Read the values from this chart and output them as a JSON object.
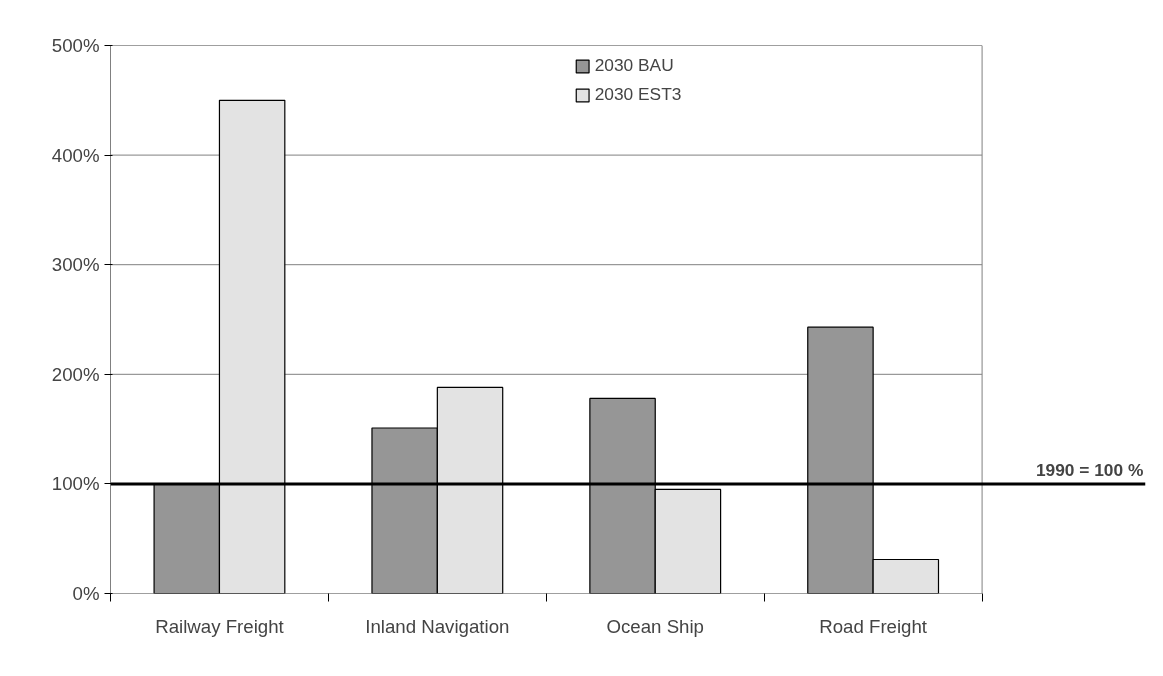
{
  "chart_data": {
    "type": "bar",
    "categories": [
      "Railway Freight",
      "Inland Navigation",
      "Ocean Ship",
      "Road Freight"
    ],
    "series": [
      {
        "name": "2030 BAU",
        "color": "#969696",
        "values": [
          100,
          151,
          178,
          243
        ]
      },
      {
        "name": "2030 EST3",
        "color": "#e3e3e3",
        "values": [
          450,
          188,
          95,
          31
        ]
      }
    ],
    "ylim": [
      0,
      500
    ],
    "yticks": [
      {
        "value": 0,
        "label": "0%"
      },
      {
        "value": 100,
        "label": "100%"
      },
      {
        "value": 200,
        "label": "200%"
      },
      {
        "value": 300,
        "label": "300%"
      },
      {
        "value": 400,
        "label": "400%"
      },
      {
        "value": 500,
        "label": "500%"
      }
    ],
    "ref_lines": [
      {
        "axis": "y",
        "value": 100,
        "label": "1990 = 100 %",
        "color": "#000000"
      }
    ],
    "grid": "y",
    "legend": "top"
  }
}
